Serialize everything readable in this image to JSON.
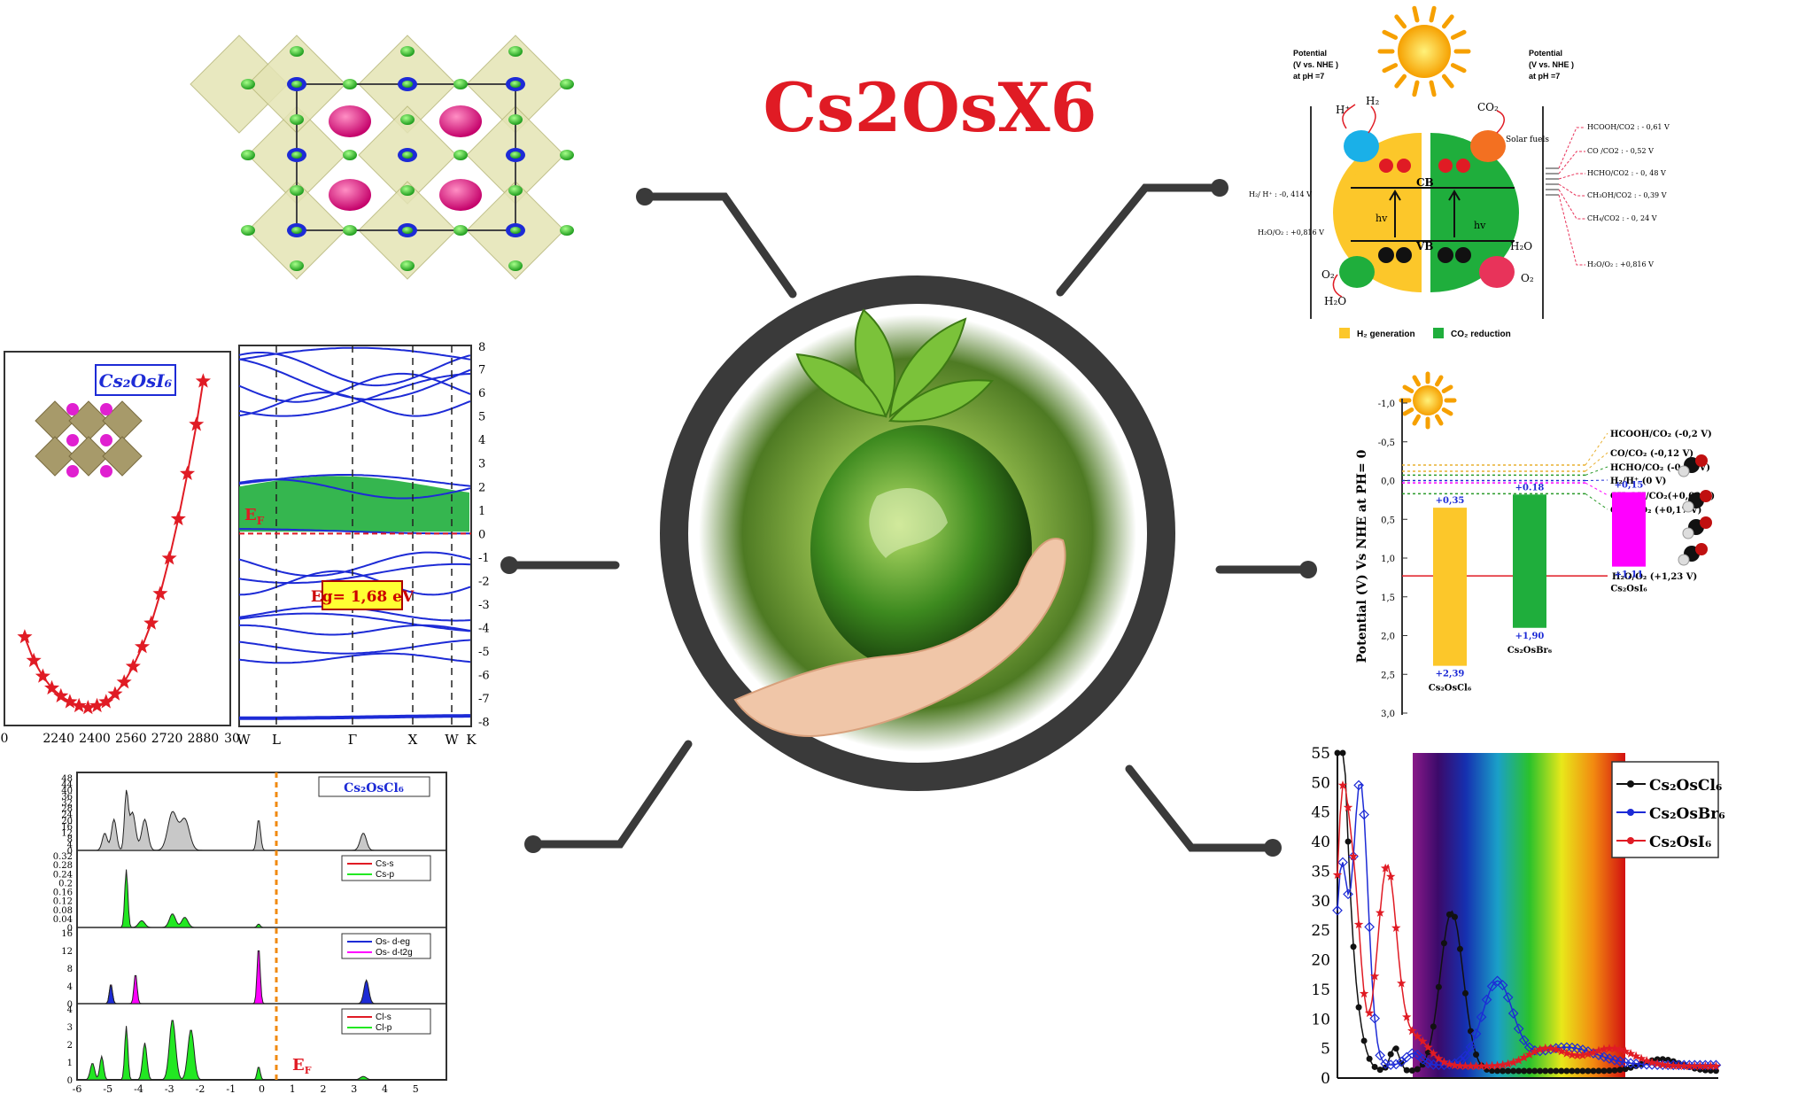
{
  "title": "Cs2OsX6",
  "colors": {
    "accent": "#e01b24",
    "hub": "#3a3a3a",
    "blue": "#1d2bd6",
    "green": "#1fae3c",
    "magenta": "#ff00ff",
    "yellow": "#fcc72a"
  },
  "crystal_label": "",
  "eos": {
    "label": "Cs₂OsI₆",
    "x_ticks": [
      "2240",
      "2400",
      "2560",
      "2720",
      "2880",
      "30"
    ],
    "points": [
      [
        2090,
        -0.5
      ],
      [
        2130,
        -0.62
      ],
      [
        2170,
        -0.7
      ],
      [
        2210,
        -0.76
      ],
      [
        2250,
        -0.8
      ],
      [
        2290,
        -0.83
      ],
      [
        2330,
        -0.85
      ],
      [
        2370,
        -0.86
      ],
      [
        2410,
        -0.85
      ],
      [
        2450,
        -0.83
      ],
      [
        2490,
        -0.79
      ],
      [
        2530,
        -0.73
      ],
      [
        2570,
        -0.65
      ],
      [
        2610,
        -0.55
      ],
      [
        2650,
        -0.43
      ],
      [
        2690,
        -0.28
      ],
      [
        2730,
        -0.1
      ],
      [
        2770,
        0.1
      ],
      [
        2810,
        0.33
      ],
      [
        2850,
        0.58
      ],
      [
        2880,
        0.8
      ]
    ]
  },
  "bands": {
    "y_ticks": [
      "7",
      "6",
      "5",
      "4",
      "3",
      "2",
      "1",
      "0",
      "-1",
      "-2",
      "-3",
      "-4",
      "-5",
      "-6",
      "-7",
      "-8"
    ],
    "k_labels": [
      "W",
      "L",
      "Γ",
      "X",
      "W",
      "K"
    ],
    "ef_label": "E",
    "ef_sub": "F",
    "gap_label": "Eg= 1,68 eV"
  },
  "dos": {
    "panel1_label": "Cs₂OsCl₆",
    "panel1_ticks": [
      "48",
      "44",
      "40",
      "36",
      "32",
      "28",
      "24",
      "20",
      "16",
      "12",
      "8",
      "4",
      "0"
    ],
    "panel2_legend": [
      "Cs-s",
      "Cs-p"
    ],
    "panel2_ticks": [
      "0.32",
      "0.28",
      "0.24",
      "0.2",
      "0.16",
      "0.12",
      "0.08",
      "0.04",
      "0"
    ],
    "panel3_legend": [
      "Os- d-eg",
      "Os- d-t2g"
    ],
    "panel3_ticks": [
      "16",
      "12",
      "8",
      "4",
      "0"
    ],
    "panel4_legend": [
      "Cl-s",
      "Cl-p"
    ],
    "panel4_ticks": [
      "4",
      "3",
      "2",
      "1",
      "0"
    ],
    "x_ticks": [
      "-6",
      "-5",
      "-4",
      "-3",
      "-2",
      "-1",
      "0",
      "1",
      "2",
      "3",
      "4",
      "5"
    ],
    "ef_label": "E",
    "ef_sub": "F"
  },
  "mech": {
    "left_axis": [
      "Potential",
      "(V vs. NHE )",
      "at pH =7"
    ],
    "right_axis": [
      "Potential",
      "(V vs. NHE )",
      "at pH =7"
    ],
    "left_levels": [
      "H₂/ H⁺ : -0, 414 V",
      "H₂O/O₂ : +0,816 V"
    ],
    "right_levels": [
      "HCOOH/CO2 : - 0,61 V",
      "CO /CO2 : - 0,52 V",
      "HCHO/CO2 : - 0, 48 V",
      "CH₃OH/CO2 : - 0,39 V",
      "CH₄/CO2 : - 0, 24 V",
      "H₂O/O₂ : +0,816 V"
    ],
    "cb": "CB",
    "vb": "VB",
    "hv": "hv",
    "h_plus": "H⁺",
    "h2": "H₂",
    "co2": "CO₂",
    "solar_fuels": "Solar fuels",
    "o2": "O₂",
    "h2o": "H₂O",
    "legend": [
      "H₂ generation",
      "CO₂ reduction"
    ]
  },
  "band_edges": {
    "ylabel": "Potential (V) Vs NHE at PH= 0",
    "y_ticks": [
      "-1,0",
      "-0,5",
      "0,0",
      "0,5",
      "1,0",
      "1,5",
      "2,0",
      "2,5",
      "3,0"
    ],
    "bars": [
      {
        "name": "Cs₂OsCl₆",
        "cb": 0.35,
        "vb": 2.39,
        "cb_label": "+0,35",
        "vb_label": "+2,39",
        "color": "#fcc72a"
      },
      {
        "name": "Cs₂OsBr₆",
        "cb": 0.18,
        "vb": 1.9,
        "cb_label": "+0.18",
        "vb_label": "+1,90",
        "color": "#1fae3c"
      },
      {
        "name": "Cs₂OsI₆",
        "cb": 0.15,
        "vb": 1.11,
        "cb_label": "+0,15",
        "vb_label": "+1,11",
        "color": "#ff00ff"
      }
    ],
    "levels": [
      {
        "label": "HCOOH/CO₂ (-0,2 V)",
        "v": -0.2
      },
      {
        "label": "CO/CO₂ (-0,12 V)",
        "v": -0.12
      },
      {
        "label": "HCHO/CO₂ (-0,07 V)",
        "v": -0.07
      },
      {
        "label": "H₂/H⁺  (0 V)",
        "v": 0
      },
      {
        "label": "CH₃OH/CO₂(+0,03 V)",
        "v": 0.03
      },
      {
        "label": "CH₄/CO₂ (+0,17 V)",
        "v": 0.17
      }
    ],
    "water_label": "H₂O/O₂ (+1,23 V)",
    "water_v": 1.23
  },
  "absorption": {
    "y_ticks": [
      "55",
      "50",
      "45",
      "40",
      "35",
      "30",
      "25",
      "20",
      "15",
      "10",
      "5",
      "0"
    ],
    "legend": [
      "Cs₂OsCl₆",
      "Cs₂OsBr₆",
      "Cs₂OsI₆"
    ]
  }
}
